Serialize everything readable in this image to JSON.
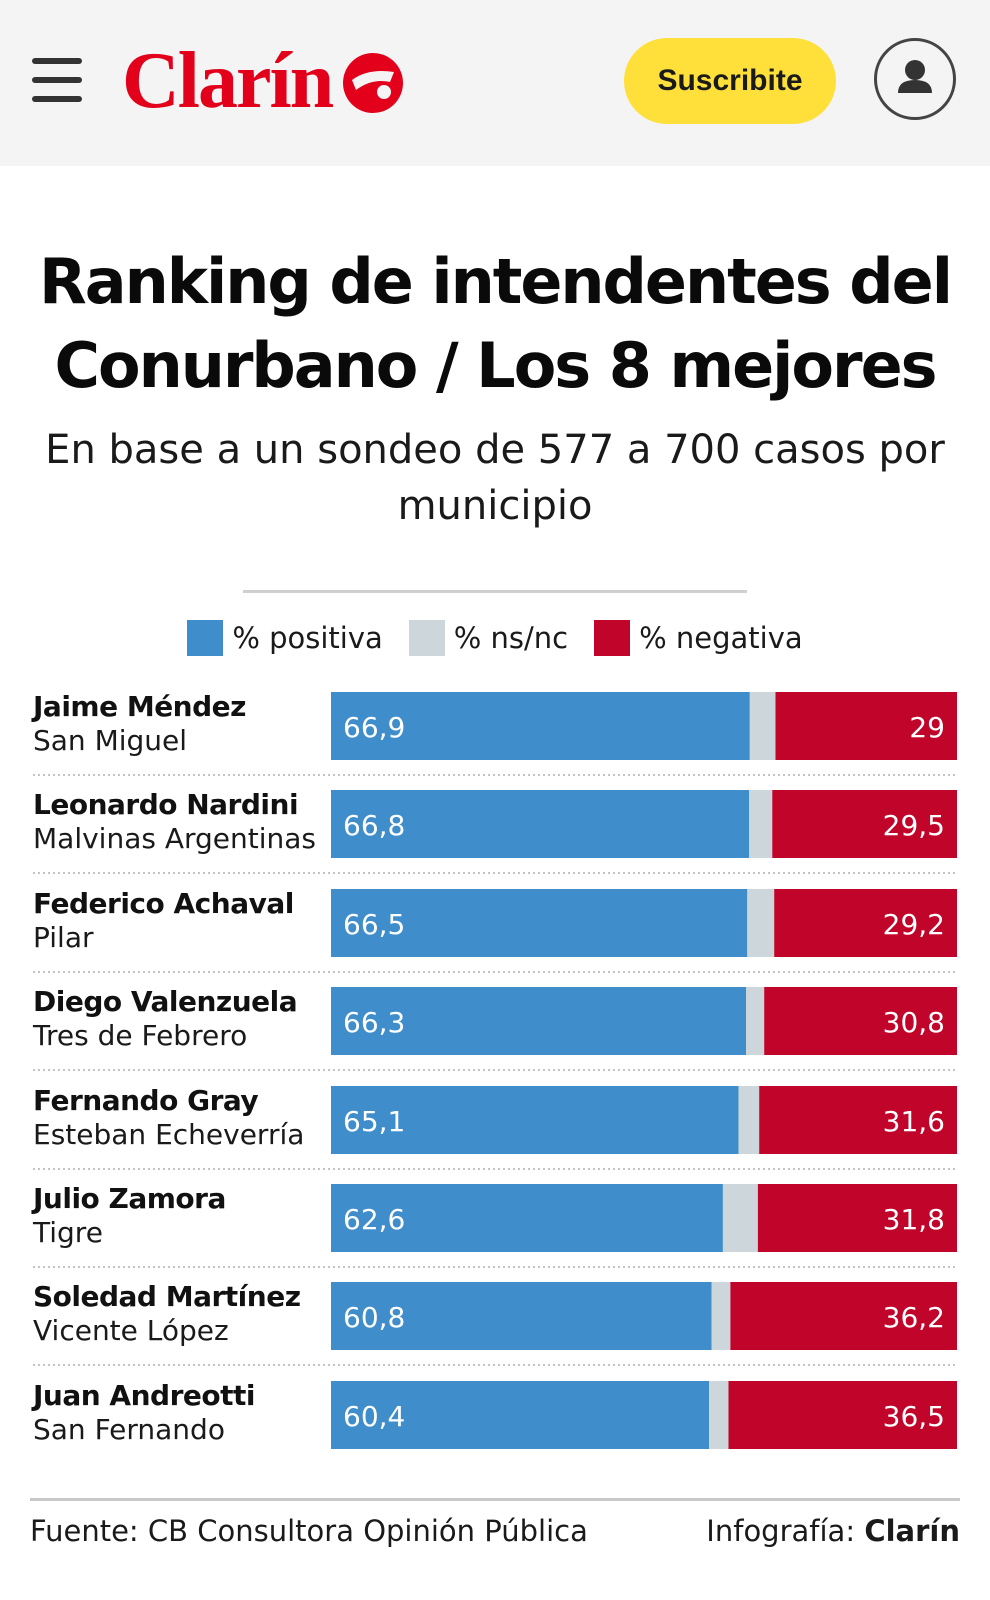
{
  "header": {
    "logo_text": "Clarín",
    "subscribe_label": "Suscribite",
    "brand_color": "#e2001a",
    "button_color": "#ffe03a",
    "icons": [
      "hamburger-menu-icon",
      "clarin-logo-mark",
      "user-icon"
    ]
  },
  "chart_data": {
    "type": "bar",
    "orientation": "horizontal",
    "stacked": true,
    "title": "Ranking de intendentes del Conurbano / Los 8 mejores",
    "subtitle": "En base a un sondeo de 577 a 700 casos por municipio",
    "legend_position": "top",
    "legend": [
      {
        "label": "% positiva",
        "color": "#3f8dcb"
      },
      {
        "label": "% ns/nc",
        "color": "#cdd6db"
      },
      {
        "label": "% negativa",
        "color": "#c0042a"
      }
    ],
    "rows": [
      {
        "name": "Jaime Méndez",
        "place": "San Miguel",
        "positiva": "66,9",
        "negativa": "29"
      },
      {
        "name": "Leonardo Nardini",
        "place": "Malvinas Argentinas",
        "positiva": "66,8",
        "negativa": "29,5"
      },
      {
        "name": "Federico Achaval",
        "place": "Pilar",
        "positiva": "66,5",
        "negativa": "29,2"
      },
      {
        "name": "Diego Valenzuela",
        "place": "Tres de Febrero",
        "positiva": "66,3",
        "negativa": "30,8"
      },
      {
        "name": "Fernando Gray",
        "place": "Esteban Echeverría",
        "positiva": "65,1",
        "negativa": "31,6"
      },
      {
        "name": "Julio Zamora",
        "place": "Tigre",
        "positiva": "62,6",
        "negativa": "31,8"
      },
      {
        "name": "Soledad Martínez",
        "place": "Vicente López",
        "positiva": "60,8",
        "negativa": "36,2"
      },
      {
        "name": "Juan Andreotti",
        "place": "San Fernando",
        "positiva": "60,4",
        "negativa": "36,5"
      }
    ],
    "xlim": [
      0,
      100
    ]
  },
  "footer": {
    "source": "Fuente: CB Consultora Opinión Pública",
    "credit_prefix": "Infografía:",
    "credit_brand": "Clarín"
  }
}
